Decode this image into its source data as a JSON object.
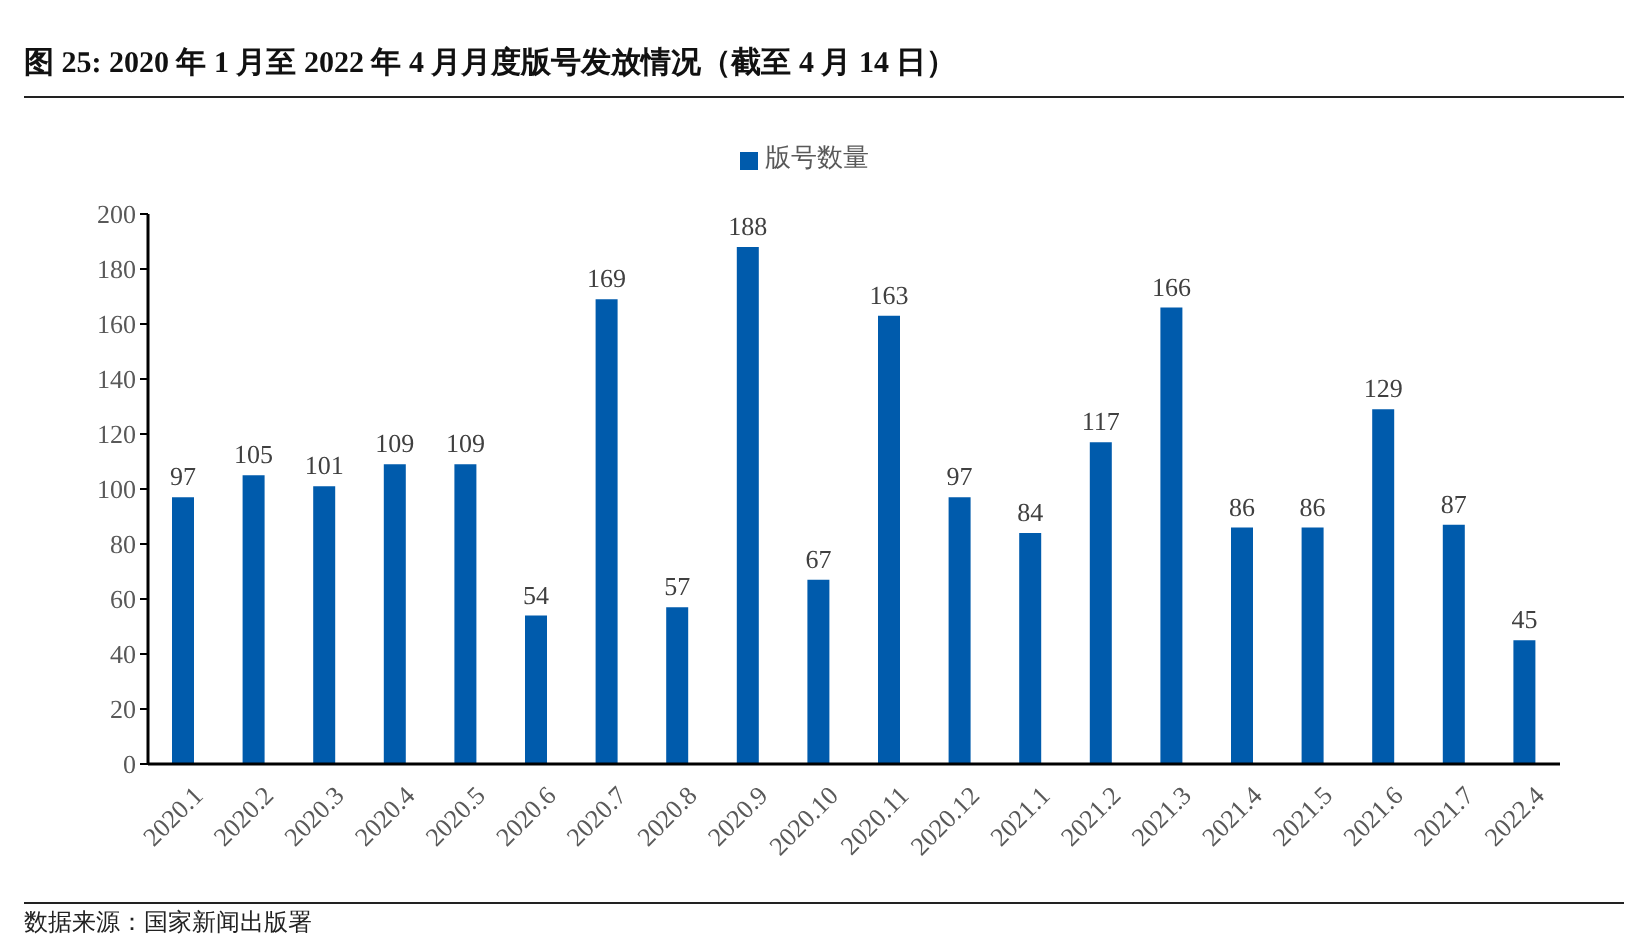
{
  "chart_data": {
    "type": "bar",
    "title": "图 25: 2020 年 1 月至 2022 年 4 月月度版号发放情况（截至 4 月 14 日）",
    "annotations": [
      "数据来源：国家新闻出版署"
    ],
    "categories": [
      "2020.1",
      "2020.2",
      "2020.3",
      "2020.4",
      "2020.5",
      "2020.6",
      "2020.7",
      "2020.8",
      "2020.9",
      "2020.10",
      "2020.11",
      "2020.12",
      "2021.1",
      "2021.2",
      "2021.3",
      "2021.4",
      "2021.5",
      "2021.6",
      "2021.7",
      "2022.4"
    ],
    "series": [
      {
        "name": "版号数量",
        "color": "#005bac",
        "values": [
          97,
          105,
          101,
          109,
          109,
          54,
          169,
          57,
          188,
          67,
          163,
          97,
          84,
          117,
          166,
          86,
          86,
          129,
          87,
          45
        ]
      }
    ],
    "ylim": [
      0,
      200
    ],
    "yticks": [
      0,
      20,
      40,
      60,
      80,
      100,
      120,
      140,
      160,
      180,
      200
    ],
    "data_labels": true,
    "legend": "top"
  }
}
